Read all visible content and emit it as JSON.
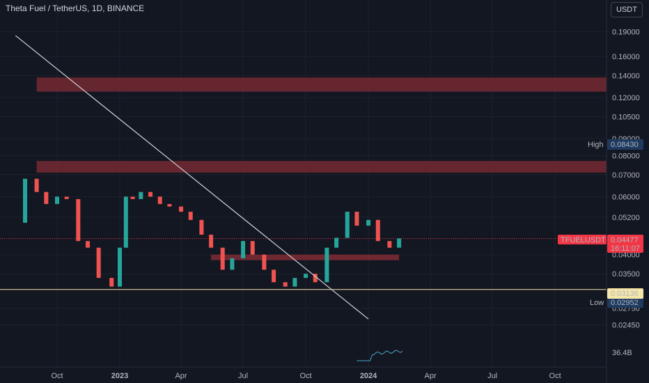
{
  "header": {
    "title": "Theta Fuel / TetherUS, 1D, BINANCE",
    "currency": "USDT"
  },
  "price_scale": {
    "ticks": [
      "0.19000",
      "0.16000",
      "0.14000",
      "0.12000",
      "0.10500",
      "0.09000",
      "0.08000",
      "0.07000",
      "0.06000",
      "0.05200",
      "0.04000",
      "0.03500",
      "0.02750",
      "0.02450"
    ],
    "high_label": "High",
    "high_value": "0.08430",
    "low_label": "Low",
    "low_value": "0.02952",
    "support_value": "0.03136",
    "current_symbol": "TFUELUSDT",
    "current_value": "0.04477",
    "countdown": "16:11:07",
    "volume_value": "36.4B",
    "colors": {
      "up": "#26a69a",
      "down": "#ef5350",
      "zone": "#7a2a33",
      "support": "#f5e6a8",
      "current": "#f23645"
    }
  },
  "time_axis": {
    "labels": [
      "Oct",
      "2023",
      "Apr",
      "Jul",
      "Oct",
      "2024",
      "Apr",
      "Jul",
      "Oct"
    ]
  },
  "chart_data": {
    "type": "candlestick",
    "symbol": "TFUELUSDT",
    "interval": "1D",
    "exchange": "BINANCE",
    "y_scale": "log",
    "ylim": [
      0.0235,
      0.205
    ],
    "x": [
      "2022-08-15",
      "2022-09-01",
      "2022-09-15",
      "2022-10-01",
      "2022-10-15",
      "2022-11-01",
      "2022-11-15",
      "2022-12-01",
      "2022-12-20",
      "2023-01-01",
      "2023-01-10",
      "2023-01-20",
      "2023-02-01",
      "2023-02-15",
      "2023-03-01",
      "2023-03-15",
      "2023-04-01",
      "2023-04-15",
      "2023-05-01",
      "2023-05-15",
      "2023-06-01",
      "2023-06-15",
      "2023-07-01",
      "2023-07-15",
      "2023-08-01",
      "2023-08-15",
      "2023-09-01",
      "2023-09-15",
      "2023-10-01",
      "2023-10-15",
      "2023-11-01",
      "2023-11-15",
      "2023-12-01",
      "2023-12-15",
      "2024-01-01",
      "2024-01-15",
      "2024-02-01",
      "2024-02-15"
    ],
    "open": [
      0.05,
      0.068,
      0.062,
      0.057,
      0.06,
      0.059,
      0.044,
      0.042,
      0.034,
      0.032,
      0.042,
      0.06,
      0.059,
      0.062,
      0.06,
      0.057,
      0.056,
      0.054,
      0.051,
      0.046,
      0.042,
      0.036,
      0.039,
      0.044,
      0.04,
      0.036,
      0.033,
      0.032,
      0.034,
      0.035,
      0.033,
      0.042,
      0.045,
      0.054,
      0.049,
      0.051,
      0.044,
      0.042
    ],
    "high": 0.0843,
    "low": 0.02952,
    "close": [
      0.068,
      0.062,
      0.057,
      0.06,
      0.059,
      0.044,
      0.042,
      0.034,
      0.032,
      0.042,
      0.06,
      0.059,
      0.062,
      0.06,
      0.057,
      0.056,
      0.054,
      0.051,
      0.046,
      0.042,
      0.036,
      0.039,
      0.044,
      0.04,
      0.036,
      0.033,
      0.032,
      0.034,
      0.035,
      0.033,
      0.042,
      0.045,
      0.054,
      0.049,
      0.051,
      0.044,
      0.042,
      0.0448
    ],
    "zones": [
      {
        "start": "2022-09-01",
        "end": "2024-12-31",
        "low": 0.125,
        "high": 0.138
      },
      {
        "start": "2022-09-01",
        "end": "2024-12-31",
        "low": 0.071,
        "high": 0.077
      },
      {
        "start": "2023-05-15",
        "end": "2024-02-15",
        "low": 0.0385,
        "high": 0.04
      }
    ],
    "trendline": {
      "start": {
        "x": "2022-08-01",
        "y": 0.185
      },
      "end": {
        "x": "2024-01-01",
        "y": 0.0255
      }
    },
    "support_line": 0.03136,
    "current_price": 0.04477,
    "volume_series": {
      "start": "2023-12-15",
      "end": "2024-02-20",
      "last_value": "36.4B"
    }
  }
}
